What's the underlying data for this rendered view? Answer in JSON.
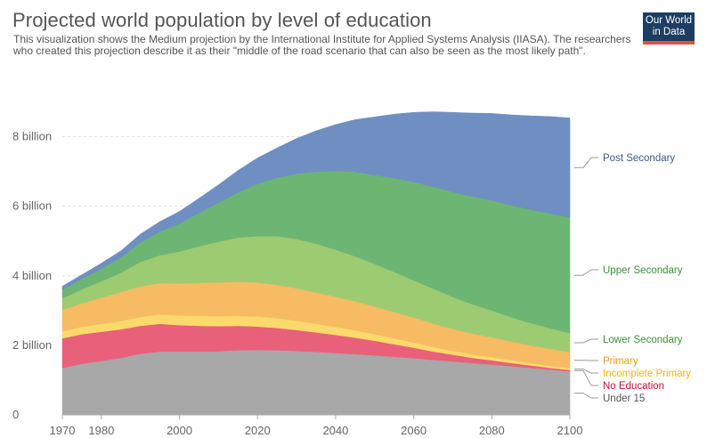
{
  "header": {
    "title": "Projected world population by level of education",
    "subtitle": "This visualization shows the Medium projection by the International Institute for Applied Systems Analysis (IIASA). The researchers who created this projection describe it as their \"middle of the road scenario that can also be seen as the most likely path\".",
    "logo_line1": "Our World",
    "logo_line2": "in Data"
  },
  "colors": {
    "Under 15": "#a8a8a8",
    "No Education": "#e8607a",
    "Incomplete Primary": "#fcd96b",
    "Primary": "#f6bb63",
    "Lower Secondary": "#9ccb72",
    "Upper Secondary": "#6db573",
    "Post Secondary": "#6f8fc2"
  },
  "label_colors": {
    "Under 15": "#555555",
    "No Education": "#c0123a",
    "Incomplete Primary": "#f0b900",
    "Primary": "#ef9a1a",
    "Lower Secondary": "#3f8f3c",
    "Upper Secondary": "#3f8f3c",
    "Post Secondary": "#3a5a8c"
  },
  "chart_data": {
    "type": "area",
    "stacked": true,
    "x": [
      1970,
      1975,
      1980,
      1985,
      1990,
      1995,
      2000,
      2005,
      2010,
      2015,
      2020,
      2025,
      2030,
      2035,
      2040,
      2045,
      2050,
      2055,
      2060,
      2065,
      2070,
      2075,
      2080,
      2085,
      2090,
      2095,
      2100
    ],
    "x_ticks": [
      "1970",
      "1980",
      "2000",
      "2020",
      "2040",
      "2060",
      "2080",
      "2100"
    ],
    "x_tick_values": [
      1970,
      1980,
      2000,
      2020,
      2040,
      2060,
      2080,
      2100
    ],
    "y_ticks": [
      "0",
      "2 billion",
      "4 billion",
      "6 billion",
      "8 billion"
    ],
    "y_tick_values": [
      0,
      2,
      4,
      6,
      8
    ],
    "ylim": [
      0,
      9.5
    ],
    "xlim": [
      1970,
      2100
    ],
    "grid": "horizontal-dashed",
    "legend_placement": "right-end-labels",
    "series": [
      {
        "name": "Under 15",
        "values": [
          1.35,
          1.47,
          1.55,
          1.64,
          1.76,
          1.82,
          1.82,
          1.82,
          1.83,
          1.86,
          1.87,
          1.86,
          1.84,
          1.81,
          1.78,
          1.75,
          1.71,
          1.67,
          1.63,
          1.58,
          1.54,
          1.49,
          1.45,
          1.4,
          1.35,
          1.3,
          1.25
        ]
      },
      {
        "name": "No Education",
        "values": [
          0.85,
          0.85,
          0.84,
          0.82,
          0.8,
          0.8,
          0.76,
          0.74,
          0.72,
          0.7,
          0.67,
          0.64,
          0.6,
          0.56,
          0.52,
          0.47,
          0.42,
          0.36,
          0.3,
          0.24,
          0.19,
          0.15,
          0.12,
          0.09,
          0.07,
          0.05,
          0.04
        ]
      },
      {
        "name": "Incomplete Primary",
        "values": [
          0.2,
          0.21,
          0.23,
          0.24,
          0.26,
          0.27,
          0.28,
          0.29,
          0.29,
          0.29,
          0.29,
          0.28,
          0.27,
          0.25,
          0.23,
          0.21,
          0.19,
          0.17,
          0.15,
          0.13,
          0.11,
          0.1,
          0.09,
          0.08,
          0.07,
          0.06,
          0.05
        ]
      },
      {
        "name": "Primary",
        "values": [
          0.62,
          0.68,
          0.75,
          0.83,
          0.88,
          0.9,
          0.92,
          0.95,
          0.97,
          0.98,
          0.98,
          0.96,
          0.93,
          0.9,
          0.87,
          0.84,
          0.8,
          0.76,
          0.72,
          0.68,
          0.63,
          0.6,
          0.57,
          0.54,
          0.51,
          0.49,
          0.46
        ]
      },
      {
        "name": "Lower Secondary",
        "values": [
          0.33,
          0.4,
          0.47,
          0.56,
          0.7,
          0.8,
          0.92,
          1.05,
          1.17,
          1.27,
          1.33,
          1.4,
          1.42,
          1.4,
          1.35,
          1.29,
          1.22,
          1.15,
          1.07,
          1.0,
          0.92,
          0.84,
          0.77,
          0.7,
          0.64,
          0.59,
          0.55
        ]
      },
      {
        "name": "Upper Secondary",
        "values": [
          0.25,
          0.3,
          0.36,
          0.44,
          0.56,
          0.68,
          0.8,
          0.96,
          1.12,
          1.3,
          1.5,
          1.68,
          1.88,
          2.07,
          2.26,
          2.43,
          2.56,
          2.7,
          2.83,
          2.93,
          3.02,
          3.1,
          3.17,
          3.22,
          3.26,
          3.3,
          3.33
        ]
      },
      {
        "name": "Post Secondary",
        "values": [
          0.1,
          0.12,
          0.16,
          0.19,
          0.24,
          0.29,
          0.35,
          0.42,
          0.52,
          0.63,
          0.75,
          0.86,
          1.01,
          1.18,
          1.34,
          1.5,
          1.67,
          1.84,
          2.0,
          2.16,
          2.29,
          2.4,
          2.5,
          2.6,
          2.7,
          2.79,
          2.86
        ]
      }
    ]
  }
}
